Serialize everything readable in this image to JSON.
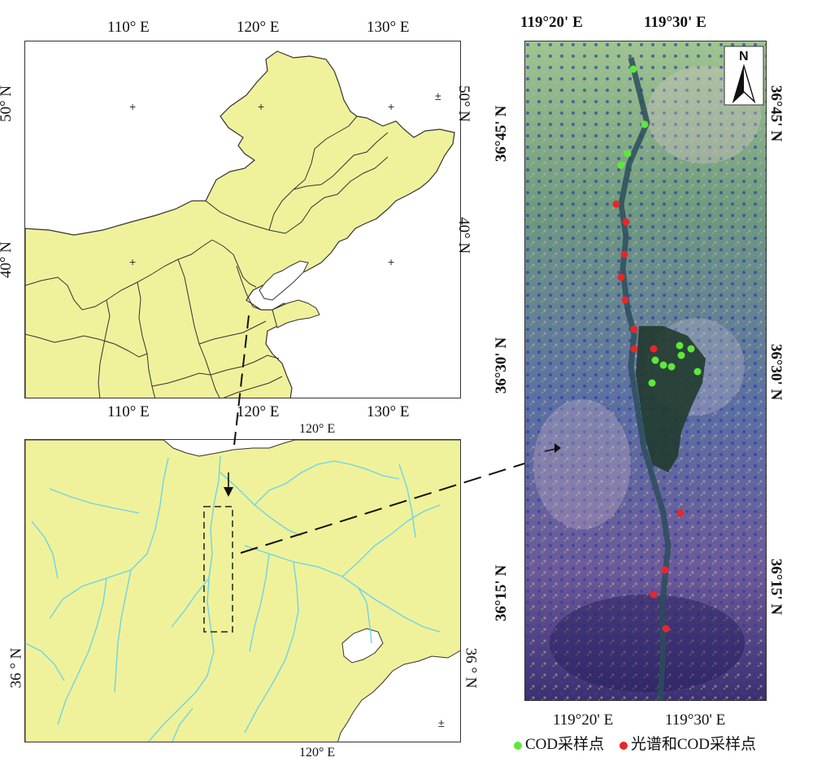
{
  "colors": {
    "land": "#eff29a",
    "border": "#333333",
    "river": "#6fd3e8",
    "cod_point": "#5ee83a",
    "spectral_cod_point": "#e8262a"
  },
  "top_map": {
    "top_ticks": [
      "110° E",
      "120° E",
      "130° E"
    ],
    "bottom_ticks": [
      "110° E",
      "120° E",
      "130° E"
    ],
    "left_ticks": [
      "50° N",
      "40° N"
    ],
    "right_ticks": [
      "50° N",
      "40° N"
    ],
    "plus_mark": "±"
  },
  "bottom_map": {
    "top_tick": "120° E",
    "bottom_tick": "120° E",
    "left_tick": "36 ° N",
    "right_tick": "36 ° N",
    "plus_mark": "±"
  },
  "image_map": {
    "top_ticks": [
      "119°20' E",
      "119°30' E"
    ],
    "bottom_ticks": [
      "119°20' E",
      "119°30' E"
    ],
    "left_ticks": [
      "36°45' N",
      "36°30' N",
      "36°15' N"
    ],
    "right_ticks": [
      "36°45' N",
      "36°30' N",
      "36°15' N"
    ],
    "north_label": "N"
  },
  "legend": {
    "cod_label": "COD采样点",
    "spectral_label": "光谱和COD采样点"
  }
}
